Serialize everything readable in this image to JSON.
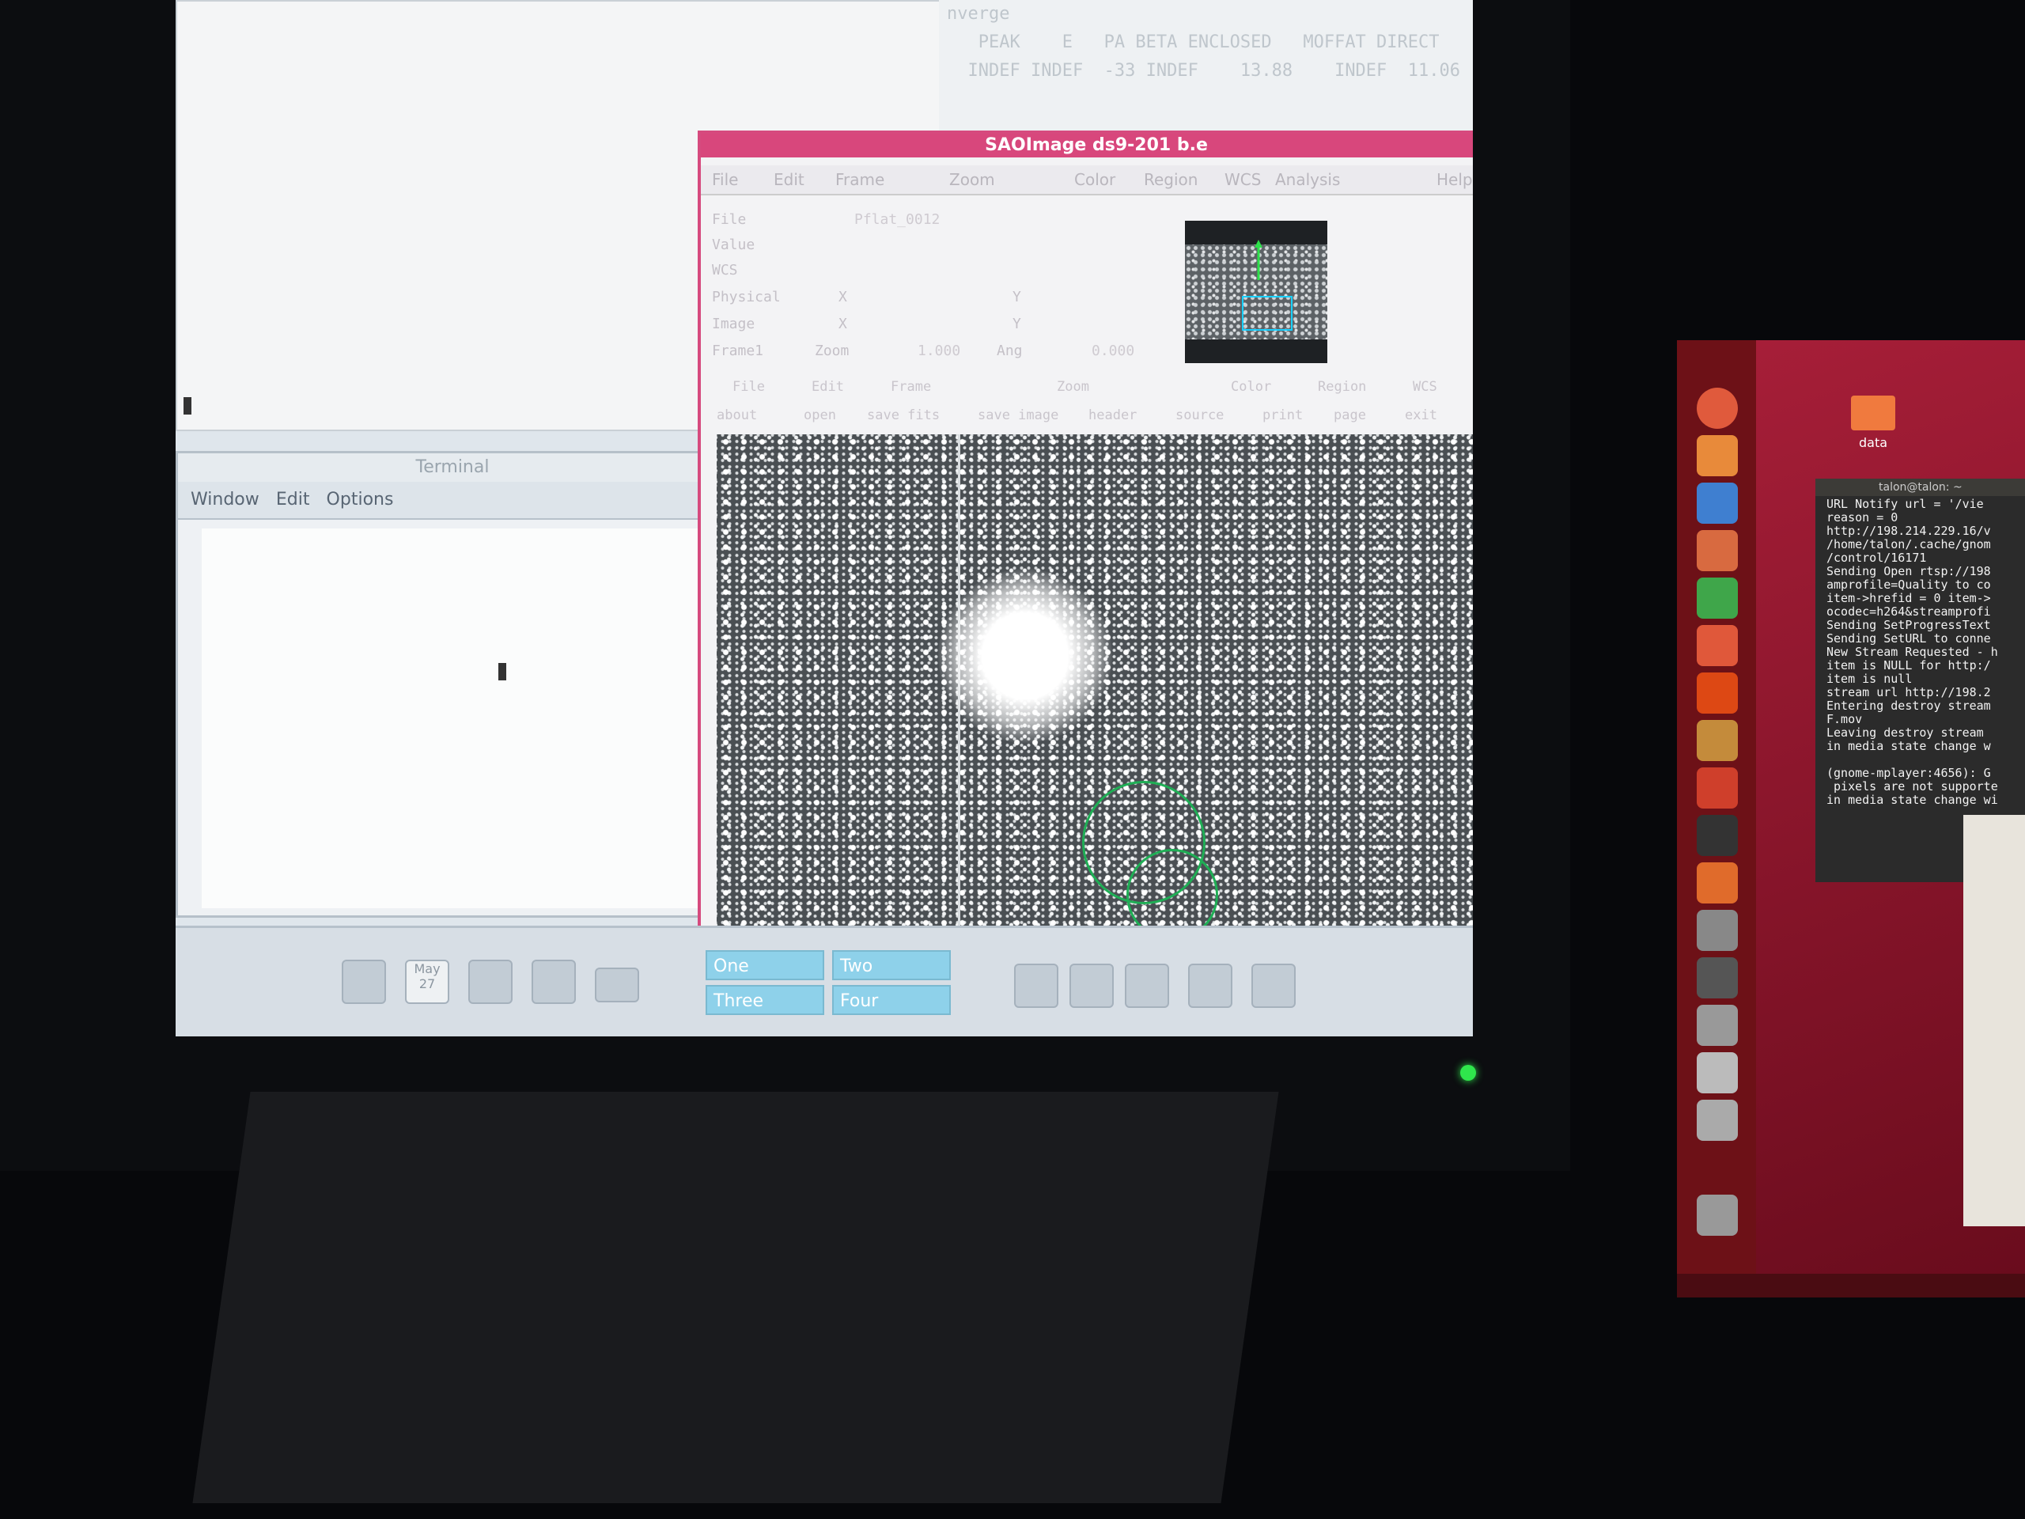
{
  "xterm_top": {
    "lines": [
      "",
      "",
      "",
      "",
      "",
      "",
      "",
      "",
      "",
      "",
      "",
      "",
      "",
      "",
      "",
      "",
      "",
      "",
      "",
      "",
      "",
      ""
    ]
  },
  "imexam": {
    "lines": [
      "nverge",
      "   PEAK    E   PA BETA ENCLOSED   MOFFAT DIRECT",
      "  INDEF INDEF  -33 INDEF    13.88    INDEF  11.06"
    ]
  },
  "terminal": {
    "title": "Terminal",
    "menu": [
      "Window",
      "Edit",
      "Options"
    ]
  },
  "ds9": {
    "title": "SAOImage ds9-201 b.e",
    "menu": [
      "File",
      "Edit",
      "Frame",
      "Zoom",
      "Color",
      "Region",
      "WCS",
      "Analysis",
      "Help"
    ],
    "info": {
      "file_label": "File",
      "file_value": "Pflat_0012",
      "value_label": "Value",
      "wcs_label": "WCS",
      "physical_label": "Physical",
      "physical_x": "X",
      "physical_y": "Y",
      "image_label": "Image",
      "image_x": "X",
      "image_y": "Y",
      "frame_label": "Frame1",
      "zoom_label": "Zoom",
      "zoom_value": "1.000",
      "angle_label": "Ang",
      "angle_value": "0.000"
    },
    "buttonbar_top": [
      "File",
      "Edit",
      "Frame",
      "Zoom",
      "Color",
      "Region",
      "WCS"
    ],
    "buttonbar_bottom": [
      "about",
      "open",
      "save fits",
      "save image",
      "header",
      "source",
      "print",
      "page",
      "exit"
    ]
  },
  "taskbar": {
    "calendar_month": "May",
    "calendar_day": "27",
    "workspaces": [
      "One",
      "Two",
      "Three",
      "Four"
    ]
  },
  "laptop": {
    "folder_label": "data",
    "terminal_title": "talon@talon: ~",
    "terminal_lines": [
      "URL Notify url = '/vie",
      "reason = 0",
      "http://198.214.229.16/v",
      "/home/talon/.cache/gnom",
      "/control/16171",
      "Sending Open rtsp://198",
      "amprofile=Quality to co",
      "item->hrefid = 0 item->",
      "ocodec=h264&streamprofi",
      "Sending SetProgressText",
      "Sending SetURL to conne",
      "New Stream Requested - h",
      "item is NULL for http:/",
      "item is null",
      "stream url http://198.2",
      "Entering destroy stream",
      "F.mov",
      "Leaving destroy stream",
      "in media state change w",
      "",
      "(gnome-mplayer:4656): G",
      " pixels are not supporte",
      "in media state change wi"
    ]
  },
  "colors": {
    "ds9_title": "#d8477c",
    "region": "#1fae55",
    "panner_box": "#18d0ff",
    "workspace": "#8ed1ea",
    "power_led": "#2fe64c",
    "ubuntu_launcher": "#6d1117"
  }
}
